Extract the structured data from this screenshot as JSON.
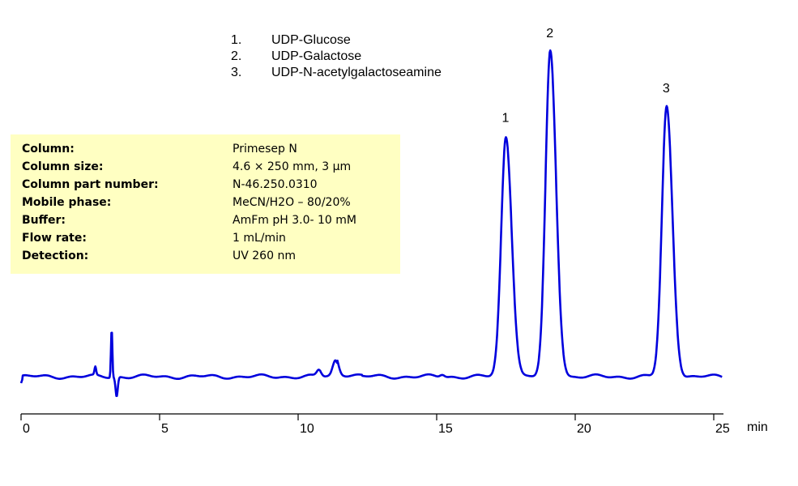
{
  "legend": {
    "items": [
      {
        "num": "1.",
        "name": "UDP-Glucose"
      },
      {
        "num": "2.",
        "name": "UDP-Galactose"
      },
      {
        "num": "3.",
        "name": "UDP-N-acetylgalactoseamine"
      }
    ]
  },
  "conditions": [
    {
      "label": "Column:",
      "value": "Primesep  N"
    },
    {
      "label": "Column size:",
      "value": "4.6 × 250 mm, 3 µm"
    },
    {
      "label": "Column part number:",
      "value": "N-46.250.0310"
    },
    {
      "label": "Mobile phase:",
      "value": "MeCN/H2O – 80/20%"
    },
    {
      "label": "Buffer:",
      "value": "AmFm pH 3.0- 10 mM"
    },
    {
      "label": "Flow rate:",
      "value": "1 mL/min"
    },
    {
      "label": "Detection:",
      "value": "UV 260 nm"
    }
  ],
  "colors": {
    "trace": "#0000dd",
    "box": "#ffffc2",
    "axis": "#000000"
  },
  "chart_data": {
    "type": "line",
    "title": "",
    "xlabel": "min",
    "ylabel": "",
    "xlim": [
      0,
      25.3
    ],
    "xticks": [
      0,
      5,
      10,
      15,
      20,
      25
    ],
    "xtick_labels": [
      "0",
      "5",
      "10",
      "15",
      "20",
      "25"
    ],
    "grid": false,
    "series": [
      {
        "name": "UV 260 nm trace",
        "peaks": [
          {
            "label": "1",
            "compound": "UDP-Glucose",
            "retention_time_min": 17.5,
            "relative_height": 0.74
          },
          {
            "label": "2",
            "compound": "UDP-Galactose",
            "retention_time_min": 19.1,
            "relative_height": 1.0
          },
          {
            "label": "3",
            "compound": "UDP-N-acetylgalactoseamine",
            "retention_time_min": 23.3,
            "relative_height": 0.83
          }
        ],
        "minor_features": [
          {
            "time_min": 2.7,
            "note": "small spike"
          },
          {
            "time_min": 3.3,
            "note": "system/injection peak (up then down)"
          },
          {
            "time_min": 10.8,
            "note": "small peak"
          },
          {
            "time_min": 11.4,
            "note": "small peak"
          },
          {
            "time_min": 15.2,
            "note": "tiny bump"
          }
        ]
      }
    ],
    "peak_labels": [
      "1",
      "2",
      "3"
    ]
  }
}
